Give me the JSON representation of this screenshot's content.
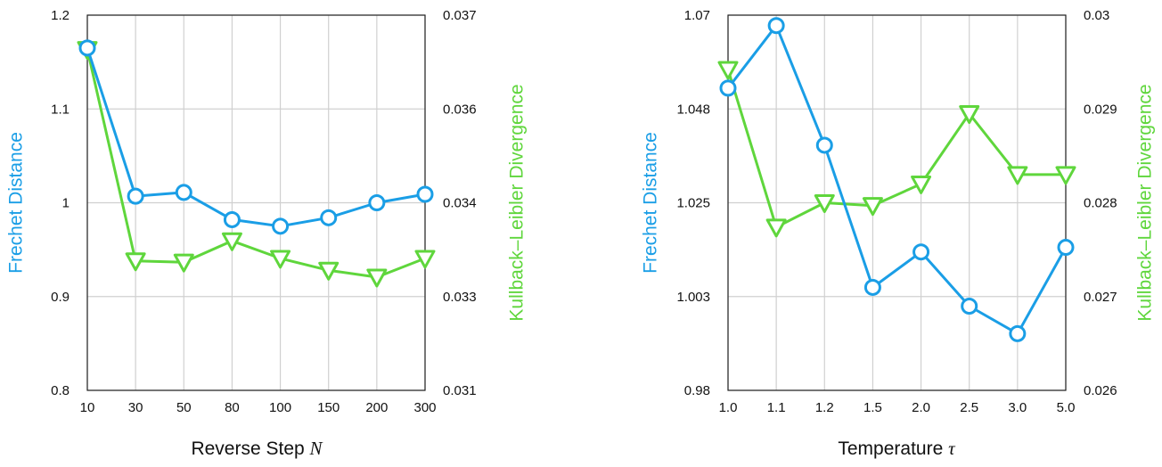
{
  "colors": {
    "frechet": "#1a9ee6",
    "kl": "#5fd63c",
    "grid": "#d0d0d0",
    "axis": "#222222"
  },
  "chart_data": [
    {
      "type": "line",
      "xlabel": "Reverse Step",
      "xlabel_symbol": "N",
      "ylabel_left": "Frechet Distance",
      "ylabel_right": "Kullback–Leibler Divergence",
      "categories": [
        "10",
        "30",
        "50",
        "80",
        "100",
        "150",
        "200",
        "300"
      ],
      "yticks_left": [
        "1.2",
        "1.1",
        "1",
        "0.9",
        "0.8"
      ],
      "yticks_right": [
        "0.037",
        "0.036",
        "0.034",
        "0.033",
        "0.031"
      ],
      "ylim_left": [
        0.8,
        1.2
      ],
      "ylim_right": [
        0.031,
        0.037
      ],
      "grid": true,
      "series": [
        {
          "name": "Frechet Distance",
          "axis": "left",
          "marker": "circle",
          "values": [
            1.165,
            1.007,
            1.011,
            0.982,
            0.975,
            0.984,
            1.0,
            1.009
          ]
        },
        {
          "name": "Kullback–Leibler Divergence",
          "axis": "right",
          "marker": "triangle-down",
          "values": [
            0.03645,
            0.03307,
            0.03305,
            0.03339,
            0.03311,
            0.03292,
            0.03281,
            0.03311
          ]
        }
      ]
    },
    {
      "type": "line",
      "xlabel": "Temperature",
      "xlabel_symbol": "τ",
      "ylabel_left": "Frechet Distance",
      "ylabel_right": "Kullback–Leibler Divergence",
      "categories": [
        "1.0",
        "1.1",
        "1.2",
        "1.5",
        "2.0",
        "2.5",
        "3.0",
        "5.0"
      ],
      "yticks_left": [
        "1.07",
        "1.048",
        "1.025",
        "1.003",
        "0.98"
      ],
      "yticks_right": [
        "0.03",
        "0.029",
        "0.028",
        "0.027",
        "0.026"
      ],
      "ylim_left": [
        0.98,
        1.07
      ],
      "ylim_right": [
        0.026,
        0.03
      ],
      "grid": true,
      "series": [
        {
          "name": "Frechet Distance",
          "axis": "left",
          "marker": "circle",
          "values": [
            1.0525,
            1.0675,
            1.0388,
            1.0047,
            1.0132,
            1.0002,
            0.9936,
            1.0143
          ]
        },
        {
          "name": "Kullback–Leibler Divergence",
          "axis": "right",
          "marker": "triangle-down",
          "values": [
            0.02942,
            0.02774,
            0.028,
            0.02797,
            0.0282,
            0.02895,
            0.0283,
            0.0283
          ]
        }
      ]
    }
  ]
}
